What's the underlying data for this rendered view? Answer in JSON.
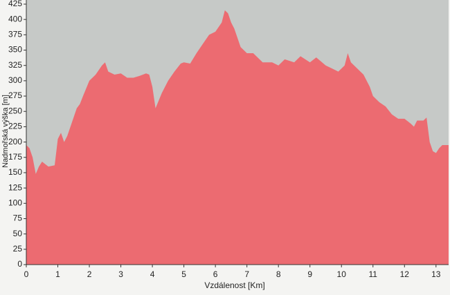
{
  "chart_data": {
    "type": "area",
    "x_label": "Vzdálenost [Km]",
    "y_label": "Nadmořská výška [m]",
    "x": [
      0,
      0.1,
      0.2,
      0.3,
      0.4,
      0.5,
      0.7,
      0.9,
      1.0,
      1.1,
      1.2,
      1.3,
      1.5,
      1.6,
      1.7,
      1.8,
      2.0,
      2.2,
      2.4,
      2.5,
      2.6,
      2.8,
      3.0,
      3.2,
      3.4,
      3.6,
      3.8,
      3.9,
      4.0,
      4.1,
      4.3,
      4.5,
      4.7,
      4.9,
      5.0,
      5.2,
      5.4,
      5.6,
      5.8,
      6.0,
      6.2,
      6.3,
      6.4,
      6.5,
      6.6,
      6.8,
      7.0,
      7.2,
      7.5,
      7.8,
      8.0,
      8.2,
      8.5,
      8.7,
      9.0,
      9.2,
      9.5,
      9.7,
      9.9,
      10.1,
      10.2,
      10.3,
      10.5,
      10.7,
      10.9,
      11.0,
      11.2,
      11.4,
      11.6,
      11.8,
      12.0,
      12.2,
      12.3,
      12.4,
      12.6,
      12.7,
      12.8,
      12.9,
      13.0,
      13.1,
      13.2,
      13.4
    ],
    "values": [
      195,
      190,
      175,
      148,
      160,
      168,
      160,
      162,
      205,
      215,
      200,
      210,
      240,
      255,
      262,
      275,
      300,
      310,
      325,
      330,
      315,
      310,
      312,
      305,
      305,
      308,
      312,
      310,
      290,
      255,
      280,
      300,
      315,
      328,
      330,
      328,
      345,
      360,
      375,
      380,
      395,
      415,
      410,
      395,
      385,
      355,
      345,
      345,
      330,
      330,
      325,
      335,
      330,
      340,
      330,
      338,
      325,
      320,
      315,
      325,
      345,
      330,
      320,
      310,
      290,
      275,
      265,
      258,
      245,
      238,
      238,
      230,
      225,
      235,
      235,
      240,
      200,
      185,
      182,
      190,
      195,
      195
    ],
    "color": "#ec6b71",
    "plot_background": "#c6c9c7",
    "xlim": [
      0,
      13.4
    ],
    "ylim": [
      0,
      425
    ],
    "xticks": [
      0,
      1,
      2,
      3,
      4,
      5,
      6,
      7,
      8,
      9,
      10,
      11,
      12,
      13
    ],
    "yticks": [
      0,
      25,
      50,
      75,
      100,
      125,
      150,
      175,
      200,
      225,
      250,
      275,
      300,
      325,
      350,
      375,
      400,
      425
    ]
  }
}
